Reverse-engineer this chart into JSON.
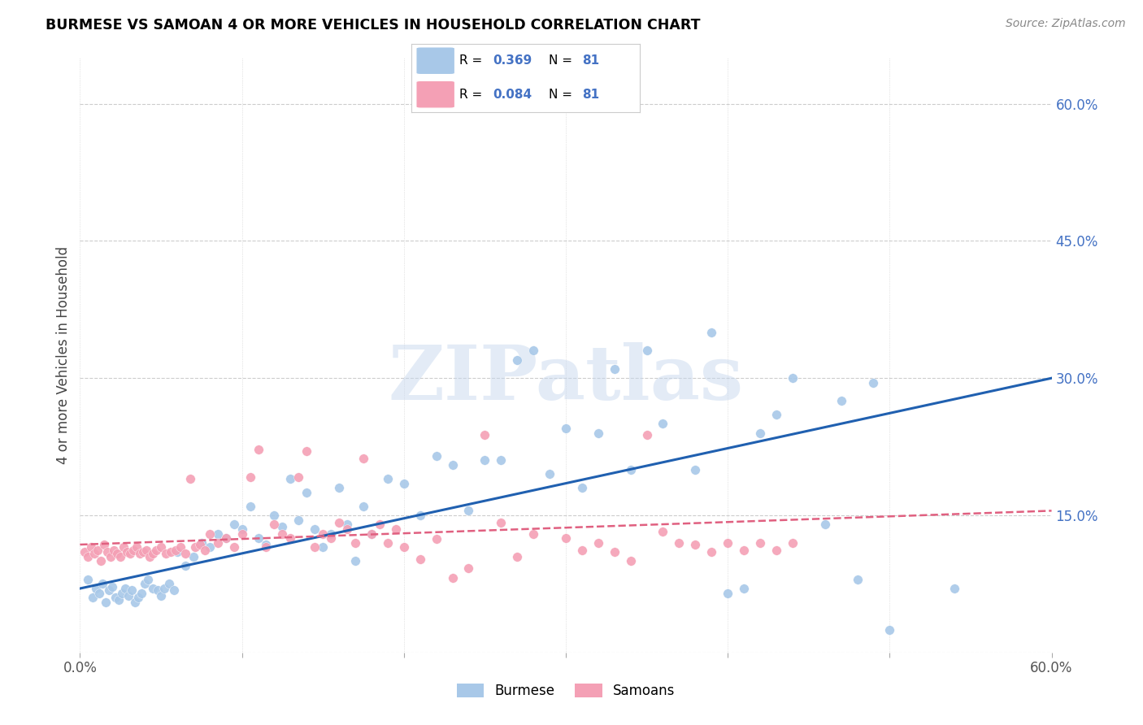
{
  "title": "BURMESE VS SAMOAN 4 OR MORE VEHICLES IN HOUSEHOLD CORRELATION CHART",
  "source": "Source: ZipAtlas.com",
  "ylabel": "4 or more Vehicles in Household",
  "xlim": [
    0.0,
    0.6
  ],
  "ylim": [
    0.0,
    0.65
  ],
  "ytick_vals": [
    0.0,
    0.15,
    0.3,
    0.45,
    0.6
  ],
  "ytick_labels": [
    "",
    "15.0%",
    "30.0%",
    "45.0%",
    "60.0%"
  ],
  "grid_color": "#cccccc",
  "burmese_color": "#a8c8e8",
  "samoan_color": "#f4a0b5",
  "burmese_line_color": "#2060b0",
  "samoan_line_color": "#e06080",
  "legend_burmese_label": "Burmese",
  "legend_samoan_label": "Samoans",
  "R_burmese": 0.369,
  "N_burmese": 81,
  "R_samoan": 0.084,
  "N_samoan": 81,
  "watermark": "ZIPatlas",
  "burmese_line_x": [
    0.0,
    0.6
  ],
  "burmese_line_y": [
    0.07,
    0.3
  ],
  "samoan_line_x": [
    0.0,
    0.6
  ],
  "samoan_line_y": [
    0.118,
    0.155
  ],
  "burmese_x": [
    0.005,
    0.008,
    0.01,
    0.012,
    0.014,
    0.016,
    0.018,
    0.02,
    0.022,
    0.024,
    0.026,
    0.028,
    0.03,
    0.032,
    0.034,
    0.036,
    0.038,
    0.04,
    0.042,
    0.045,
    0.048,
    0.05,
    0.052,
    0.055,
    0.058,
    0.06,
    0.065,
    0.07,
    0.075,
    0.08,
    0.085,
    0.09,
    0.095,
    0.1,
    0.105,
    0.11,
    0.115,
    0.12,
    0.125,
    0.13,
    0.135,
    0.14,
    0.145,
    0.15,
    0.155,
    0.16,
    0.165,
    0.17,
    0.175,
    0.18,
    0.19,
    0.2,
    0.21,
    0.22,
    0.23,
    0.24,
    0.25,
    0.26,
    0.27,
    0.28,
    0.29,
    0.3,
    0.31,
    0.32,
    0.33,
    0.34,
    0.35,
    0.36,
    0.38,
    0.39,
    0.4,
    0.41,
    0.42,
    0.43,
    0.44,
    0.46,
    0.47,
    0.48,
    0.49,
    0.5,
    0.54
  ],
  "burmese_y": [
    0.08,
    0.06,
    0.07,
    0.065,
    0.075,
    0.055,
    0.068,
    0.072,
    0.06,
    0.058,
    0.065,
    0.07,
    0.062,
    0.068,
    0.055,
    0.06,
    0.065,
    0.075,
    0.08,
    0.07,
    0.068,
    0.062,
    0.07,
    0.075,
    0.068,
    0.11,
    0.095,
    0.105,
    0.12,
    0.115,
    0.13,
    0.125,
    0.14,
    0.135,
    0.16,
    0.125,
    0.118,
    0.15,
    0.138,
    0.19,
    0.145,
    0.175,
    0.135,
    0.115,
    0.13,
    0.18,
    0.14,
    0.1,
    0.16,
    0.13,
    0.19,
    0.185,
    0.15,
    0.215,
    0.205,
    0.155,
    0.21,
    0.21,
    0.32,
    0.33,
    0.195,
    0.245,
    0.18,
    0.24,
    0.31,
    0.2,
    0.33,
    0.25,
    0.2,
    0.35,
    0.065,
    0.07,
    0.24,
    0.26,
    0.3,
    0.14,
    0.275,
    0.08,
    0.295,
    0.025,
    0.07
  ],
  "samoan_x": [
    0.003,
    0.005,
    0.007,
    0.009,
    0.011,
    0.013,
    0.015,
    0.017,
    0.019,
    0.021,
    0.023,
    0.025,
    0.027,
    0.029,
    0.031,
    0.033,
    0.035,
    0.037,
    0.039,
    0.041,
    0.043,
    0.045,
    0.047,
    0.05,
    0.053,
    0.056,
    0.059,
    0.062,
    0.065,
    0.068,
    0.071,
    0.074,
    0.077,
    0.08,
    0.085,
    0.09,
    0.095,
    0.1,
    0.105,
    0.11,
    0.115,
    0.12,
    0.125,
    0.13,
    0.135,
    0.14,
    0.145,
    0.15,
    0.155,
    0.16,
    0.165,
    0.17,
    0.175,
    0.18,
    0.185,
    0.19,
    0.195,
    0.2,
    0.21,
    0.22,
    0.23,
    0.24,
    0.25,
    0.26,
    0.27,
    0.28,
    0.3,
    0.31,
    0.32,
    0.33,
    0.34,
    0.35,
    0.36,
    0.37,
    0.38,
    0.39,
    0.4,
    0.41,
    0.42,
    0.43,
    0.44
  ],
  "samoan_y": [
    0.11,
    0.105,
    0.115,
    0.108,
    0.112,
    0.1,
    0.118,
    0.11,
    0.105,
    0.112,
    0.108,
    0.105,
    0.115,
    0.11,
    0.108,
    0.112,
    0.115,
    0.108,
    0.11,
    0.112,
    0.105,
    0.108,
    0.112,
    0.115,
    0.108,
    0.11,
    0.112,
    0.115,
    0.108,
    0.19,
    0.115,
    0.118,
    0.112,
    0.13,
    0.12,
    0.125,
    0.115,
    0.13,
    0.192,
    0.222,
    0.115,
    0.14,
    0.13,
    0.125,
    0.192,
    0.22,
    0.115,
    0.13,
    0.125,
    0.142,
    0.135,
    0.12,
    0.212,
    0.13,
    0.14,
    0.12,
    0.135,
    0.115,
    0.102,
    0.124,
    0.082,
    0.092,
    0.238,
    0.142,
    0.105,
    0.13,
    0.125,
    0.112,
    0.12,
    0.11,
    0.1,
    0.238,
    0.132,
    0.12,
    0.118,
    0.11,
    0.12,
    0.112,
    0.12,
    0.112,
    0.12
  ]
}
